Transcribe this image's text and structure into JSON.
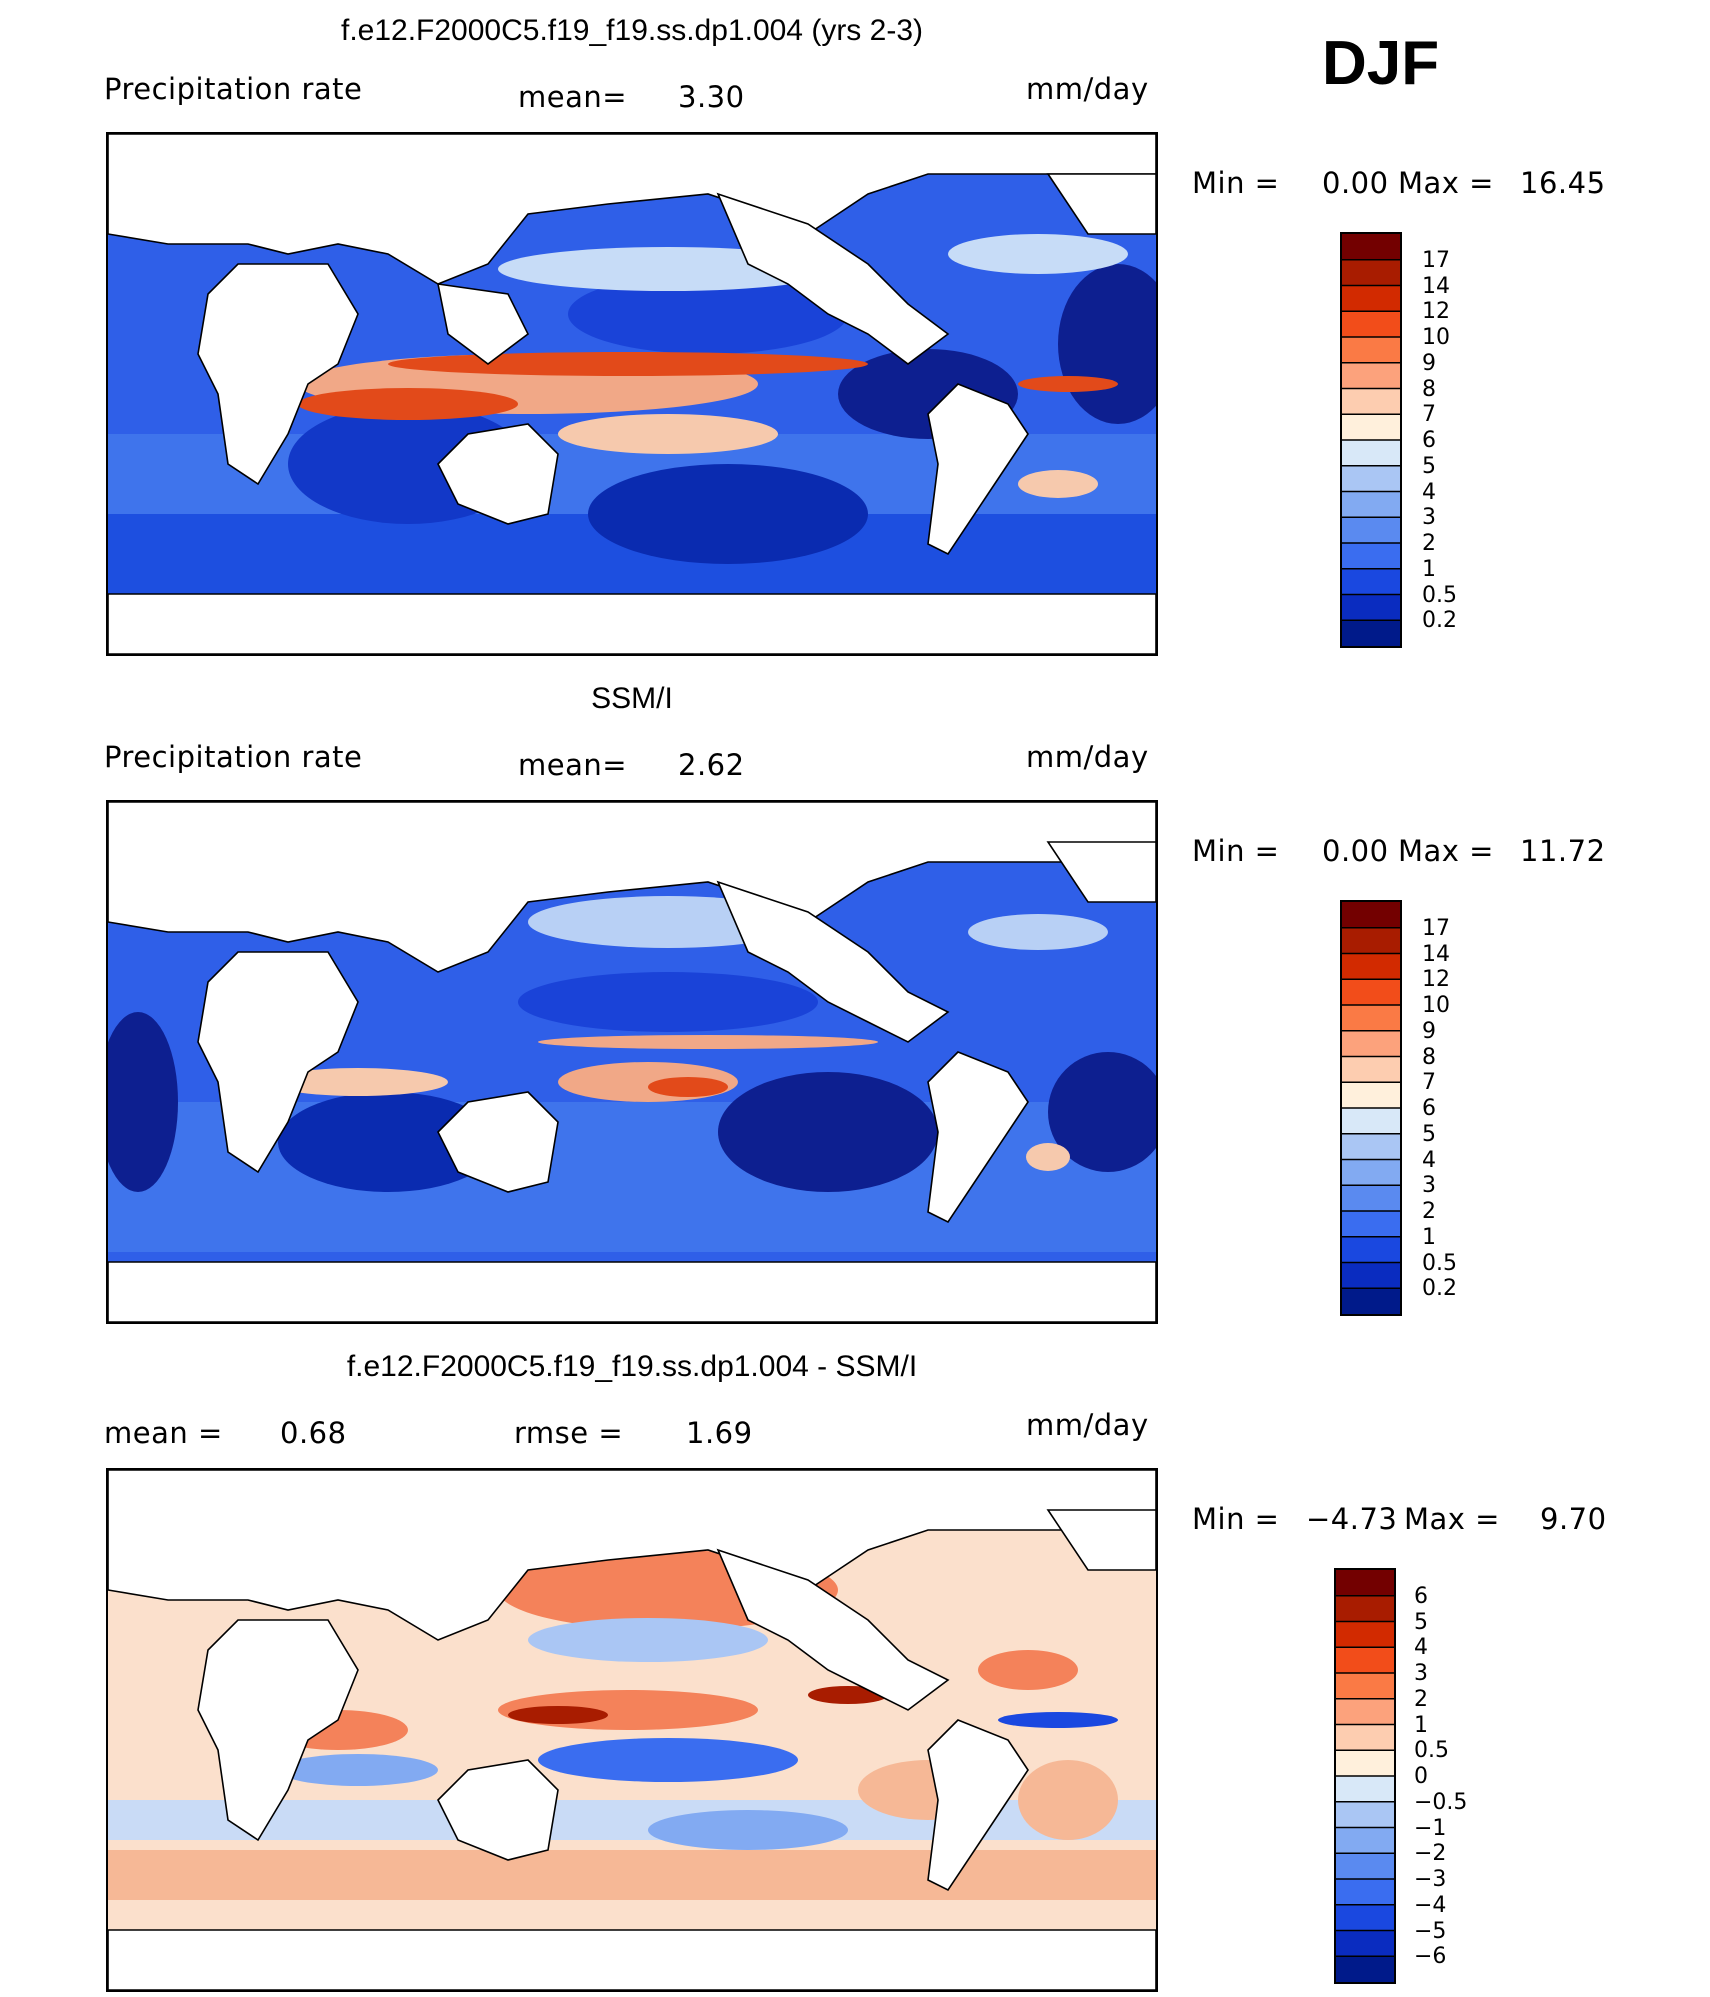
{
  "header": {
    "season": "DJF"
  },
  "panels": [
    {
      "title": "f.e12.F2000C5.f19_f19.ss.dp1.004 (yrs 2-3)",
      "left_label": "Precipitation  rate",
      "stat1_label": "mean=",
      "stat1_value": "3.30",
      "stat2_label": "",
      "stat2_value": "",
      "units": "mm/day",
      "min_label": "Min  =",
      "min_value": "0.00",
      "max_label": "Max  =",
      "max_value": "16.45",
      "colorbar_levels": [
        "17",
        "14",
        "12",
        "10",
        "9",
        "8",
        "7",
        "6",
        "5",
        "4",
        "3",
        "2",
        "1",
        "0.5",
        "0.2"
      ]
    },
    {
      "title": "SSM/I",
      "left_label": "Precipitation  rate",
      "stat1_label": "mean=",
      "stat1_value": "2.62",
      "stat2_label": "",
      "stat2_value": "",
      "units": "mm/day",
      "min_label": "Min  =",
      "min_value": "0.00",
      "max_label": "Max  =",
      "max_value": "11.72",
      "colorbar_levels": [
        "17",
        "14",
        "12",
        "10",
        "9",
        "8",
        "7",
        "6",
        "5",
        "4",
        "3",
        "2",
        "1",
        "0.5",
        "0.2"
      ]
    },
    {
      "title": "f.e12.F2000C5.f19_f19.ss.dp1.004 - SSM/I",
      "left_label": "",
      "stat1_label": "mean  =",
      "stat1_value": "0.68",
      "stat2_label": "rmse  =",
      "stat2_value": "1.69",
      "units": "mm/day",
      "min_label": "Min  =",
      "min_value": "−4.73",
      "max_label": "Max  =",
      "max_value": "9.70",
      "colorbar_levels": [
        "6",
        "5",
        "4",
        "3",
        "2",
        "1",
        "0.5",
        "0",
        "−0.5",
        "−1",
        "−2",
        "−3",
        "−4",
        "−5",
        "−6"
      ]
    }
  ],
  "colors": {
    "precip_scale": [
      "#730000",
      "#a81c00",
      "#d22a00",
      "#f24d1a",
      "#fa7a45",
      "#fca27c",
      "#fdcdb0",
      "#fff0dc",
      "#d8e8f8",
      "#aac6f4",
      "#82aaf2",
      "#5a8af0",
      "#3a6df0",
      "#1a48e0",
      "#0a2cc0",
      "#001a8a"
    ],
    "diff_scale": [
      "#730000",
      "#a81c00",
      "#d22a00",
      "#f24d1a",
      "#fa7a45",
      "#fca27c",
      "#fdcdb0",
      "#fff0dc",
      "#d8e8f8",
      "#aac6f4",
      "#82aaf2",
      "#5a8af0",
      "#3a6df0",
      "#1a48e0",
      "#0a2cc0",
      "#001a8a"
    ],
    "land": "#ffffff",
    "coast": "#000000"
  }
}
